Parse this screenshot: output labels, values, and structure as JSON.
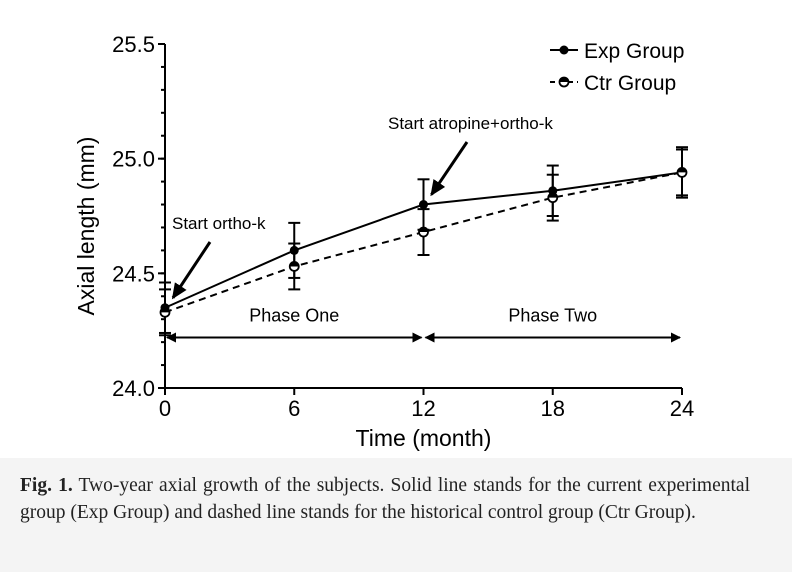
{
  "chart_data": {
    "type": "line",
    "title": "",
    "xlabel": "Time (month)",
    "ylabel": "Axial length (mm)",
    "x": [
      0,
      6,
      12,
      18,
      24
    ],
    "xlim": [
      0,
      24
    ],
    "ylim": [
      24.0,
      25.5
    ],
    "xticks": [
      0,
      6,
      12,
      18,
      24
    ],
    "xtick_labels": [
      "0",
      "6",
      "12",
      "18",
      "24"
    ],
    "yticks": [
      24.0,
      24.5,
      25.0,
      25.5
    ],
    "ytick_labels": [
      "24.0",
      "24.5",
      "25.0",
      "25.5"
    ],
    "grid": false,
    "legend_position": "top-right",
    "series": [
      {
        "name": "Exp Group",
        "style": "solid",
        "marker": "filled-circle",
        "values": [
          24.35,
          24.6,
          24.8,
          24.86,
          24.94
        ],
        "error": [
          0.11,
          0.12,
          0.11,
          0.11,
          0.11
        ]
      },
      {
        "name": "Ctr Group",
        "style": "dashed",
        "marker": "half-filled-circle",
        "values": [
          24.33,
          24.53,
          24.68,
          24.83,
          24.94
        ],
        "error": [
          0.1,
          0.1,
          0.1,
          0.1,
          0.1
        ]
      }
    ],
    "annotations": [
      {
        "text": "Start ortho-k",
        "x": 0,
        "y": 24.35
      },
      {
        "text": "Start atropine+ortho-k",
        "x": 12,
        "y": 24.8
      }
    ],
    "phases": [
      {
        "label": "Phase One",
        "from": 0,
        "to": 12,
        "y": 24.22
      },
      {
        "label": "Phase Two",
        "from": 12,
        "to": 24,
        "y": 24.22
      }
    ]
  },
  "caption": {
    "label": "Fig. 1.",
    "text": "Two-year axial growth of the subjects. Solid line stands for the current experimental group (Exp Group) and dashed line stands for the historical control group (Ctr Group)."
  },
  "colors": {
    "line": "#000000",
    "caption_text": "#222222",
    "caption_bg": "#f4f4f4"
  }
}
